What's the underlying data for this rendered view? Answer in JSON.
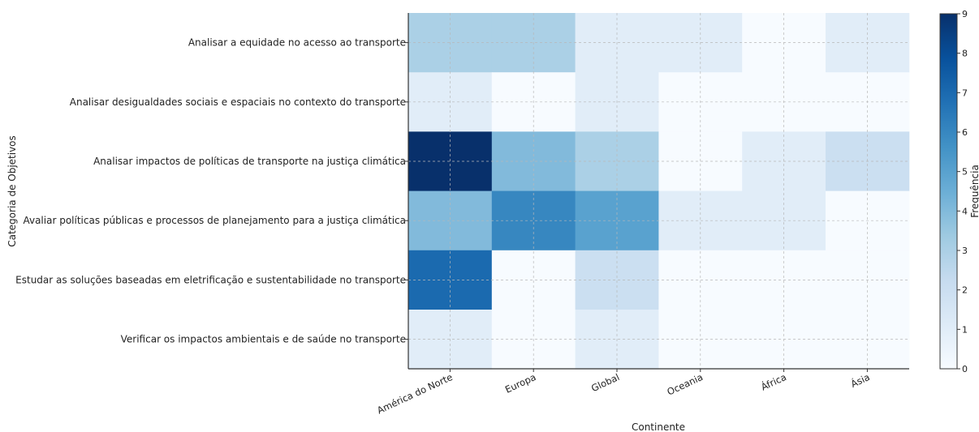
{
  "chart_data": {
    "type": "heatmap",
    "title": "",
    "xlabel": "Continente",
    "ylabel": "Categoria de Objetivos",
    "x_categories": [
      "América do Norte",
      "Europa",
      "Global",
      "Oceania",
      "África",
      "Ásia"
    ],
    "y_categories": [
      "Analisar a equidade no acesso ao transporte",
      "Analisar desigualdades sociais e espaciais no contexto do transporte",
      "Analisar impactos de políticas de transporte na justiça climática",
      "Avaliar políticas públicas e processos de planejamento para a justiça climática",
      "Estudar as soluções baseadas em eletrificação e sustentabilidade no transporte",
      "Verificar os impactos ambientais e de saúde no transporte"
    ],
    "values": [
      [
        3,
        3,
        1,
        1,
        0,
        1
      ],
      [
        1,
        0,
        1,
        0,
        0,
        0
      ],
      [
        9,
        4,
        3,
        0,
        1,
        2
      ],
      [
        4,
        6,
        5,
        1,
        1,
        0
      ],
      [
        7,
        0,
        2,
        0,
        0,
        0
      ],
      [
        1,
        0,
        1,
        0,
        0,
        0
      ]
    ],
    "colorbar": {
      "label": "Frequência",
      "range": [
        0,
        9
      ],
      "ticks": [
        "0",
        "1",
        "2",
        "3",
        "4",
        "5",
        "6",
        "7",
        "8",
        "9"
      ],
      "colormap": "Blues"
    },
    "grid": true
  }
}
